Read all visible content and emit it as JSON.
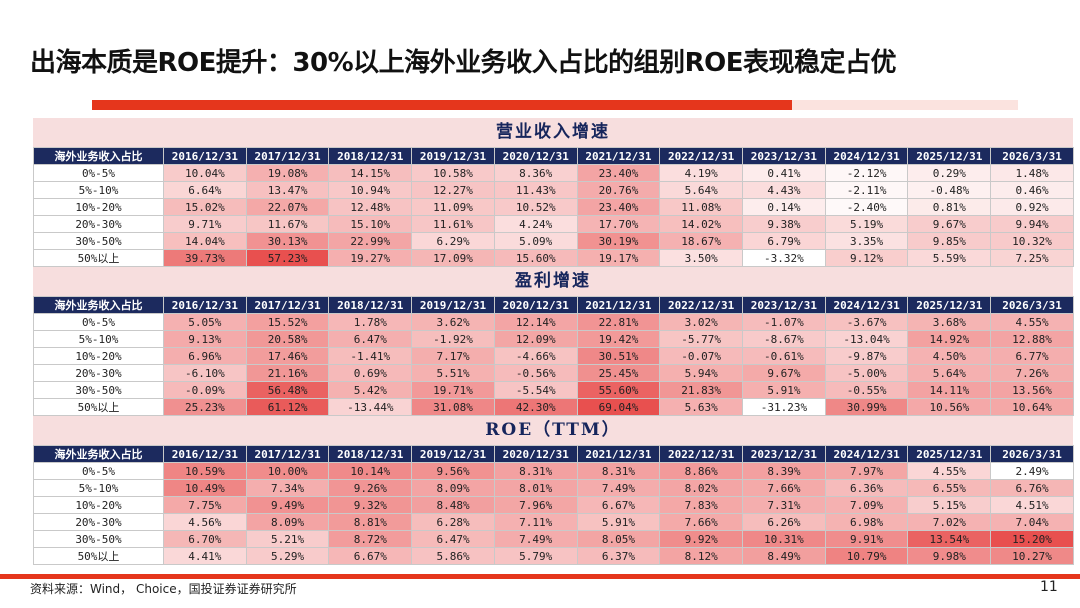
{
  "title": "出海本质是ROE提升：30%以上海外业务收入占比的组别ROE表现稳定占优",
  "row_header_label": "海外业务收入占比",
  "columns": [
    "2016/12/31",
    "2017/12/31",
    "2018/12/31",
    "2019/12/31",
    "2020/12/31",
    "2021/12/31",
    "2022/12/31",
    "2023/12/31",
    "2024/12/31",
    "2025/12/31",
    "2026/3/31"
  ],
  "row_labels": [
    "0%-5%",
    "5%-10%",
    "10%-20%",
    "20%-30%",
    "30%-50%",
    "50%以上"
  ],
  "tables": [
    {
      "title": "营业收入增速",
      "cells": [
        [
          "10.04%",
          "19.08%",
          "14.15%",
          "10.58%",
          "8.36%",
          "23.40%",
          "4.19%",
          "0.41%",
          "-2.12%",
          "0.29%",
          "1.48%"
        ],
        [
          "6.64%",
          "13.47%",
          "10.94%",
          "12.27%",
          "11.43%",
          "20.76%",
          "5.64%",
          "4.43%",
          "-2.11%",
          "-0.48%",
          "0.46%"
        ],
        [
          "15.02%",
          "22.07%",
          "12.48%",
          "11.09%",
          "10.52%",
          "23.40%",
          "11.08%",
          "0.14%",
          "-2.40%",
          "0.81%",
          "0.92%"
        ],
        [
          "9.71%",
          "11.67%",
          "15.10%",
          "11.61%",
          "4.24%",
          "17.70%",
          "14.02%",
          "9.38%",
          "5.19%",
          "9.67%",
          "9.94%"
        ],
        [
          "14.04%",
          "30.13%",
          "22.99%",
          "6.29%",
          "5.09%",
          "30.19%",
          "18.67%",
          "6.79%",
          "3.35%",
          "9.85%",
          "10.32%"
        ],
        [
          "39.73%",
          "57.23%",
          "19.27%",
          "17.09%",
          "15.60%",
          "19.17%",
          "3.50%",
          "-3.32%",
          "9.12%",
          "5.59%",
          "7.25%"
        ]
      ],
      "values": [
        [
          10.04,
          19.08,
          14.15,
          10.58,
          8.36,
          23.4,
          4.19,
          0.41,
          -2.12,
          0.29,
          1.48
        ],
        [
          6.64,
          13.47,
          10.94,
          12.27,
          11.43,
          20.76,
          5.64,
          4.43,
          -2.11,
          -0.48,
          0.46
        ],
        [
          15.02,
          22.07,
          12.48,
          11.09,
          10.52,
          23.4,
          11.08,
          0.14,
          -2.4,
          0.81,
          0.92
        ],
        [
          9.71,
          11.67,
          15.1,
          11.61,
          4.24,
          17.7,
          14.02,
          9.38,
          5.19,
          9.67,
          9.94
        ],
        [
          14.04,
          30.13,
          22.99,
          6.29,
          5.09,
          30.19,
          18.67,
          6.79,
          3.35,
          9.85,
          10.32
        ],
        [
          39.73,
          57.23,
          19.27,
          17.09,
          15.6,
          19.17,
          3.5,
          -3.32,
          9.12,
          5.59,
          7.25
        ]
      ]
    },
    {
      "title": "盈利增速",
      "cells": [
        [
          "5.05%",
          "15.52%",
          "1.78%",
          "3.62%",
          "12.14%",
          "22.81%",
          "3.02%",
          "-1.07%",
          "-3.67%",
          "3.68%",
          "4.55%"
        ],
        [
          "9.13%",
          "20.58%",
          "6.47%",
          "-1.92%",
          "12.09%",
          "19.42%",
          "-5.77%",
          "-8.67%",
          "-13.04%",
          "14.92%",
          "12.88%"
        ],
        [
          "6.96%",
          "17.46%",
          "-1.41%",
          "7.17%",
          "-4.66%",
          "30.51%",
          "-0.07%",
          "-0.61%",
          "-9.87%",
          "4.50%",
          "6.77%"
        ],
        [
          "-6.10%",
          "21.16%",
          "0.69%",
          "5.51%",
          "-0.56%",
          "25.45%",
          "5.94%",
          "9.67%",
          "-5.00%",
          "5.64%",
          "7.26%"
        ],
        [
          "-0.09%",
          "56.48%",
          "5.42%",
          "19.71%",
          "-5.54%",
          "55.60%",
          "21.83%",
          "5.91%",
          "-0.55%",
          "14.11%",
          "13.56%"
        ],
        [
          "25.23%",
          "61.12%",
          "-13.44%",
          "31.08%",
          "42.30%",
          "69.04%",
          "5.63%",
          "-31.23%",
          "30.99%",
          "10.56%",
          "10.64%"
        ]
      ],
      "values": [
        [
          5.05,
          15.52,
          1.78,
          3.62,
          12.14,
          22.81,
          3.02,
          -1.07,
          -3.67,
          3.68,
          4.55
        ],
        [
          9.13,
          20.58,
          6.47,
          -1.92,
          12.09,
          19.42,
          -5.77,
          -8.67,
          -13.04,
          14.92,
          12.88
        ],
        [
          6.96,
          17.46,
          -1.41,
          7.17,
          -4.66,
          30.51,
          -0.07,
          -0.61,
          -9.87,
          4.5,
          6.77
        ],
        [
          -6.1,
          21.16,
          0.69,
          5.51,
          -0.56,
          25.45,
          5.94,
          9.67,
          -5.0,
          5.64,
          7.26
        ],
        [
          -0.09,
          56.48,
          5.42,
          19.71,
          -5.54,
          55.6,
          21.83,
          5.91,
          -0.55,
          14.11,
          13.56
        ],
        [
          25.23,
          61.12,
          -13.44,
          31.08,
          42.3,
          69.04,
          5.63,
          -31.23,
          30.99,
          10.56,
          10.64
        ]
      ]
    },
    {
      "title": "ROE（TTM）",
      "cells": [
        [
          "10.59%",
          "10.00%",
          "10.14%",
          "9.56%",
          "8.31%",
          "8.31%",
          "8.86%",
          "8.39%",
          "7.97%",
          "4.55%",
          "2.49%"
        ],
        [
          "10.49%",
          "7.34%",
          "9.26%",
          "8.09%",
          "8.01%",
          "7.49%",
          "8.02%",
          "7.66%",
          "6.36%",
          "6.55%",
          "6.76%"
        ],
        [
          "7.75%",
          "9.49%",
          "9.32%",
          "8.48%",
          "7.96%",
          "6.67%",
          "7.83%",
          "7.31%",
          "7.09%",
          "5.15%",
          "4.51%"
        ],
        [
          "4.56%",
          "8.09%",
          "8.81%",
          "6.28%",
          "7.11%",
          "5.91%",
          "7.66%",
          "6.26%",
          "6.98%",
          "7.02%",
          "7.04%"
        ],
        [
          "6.70%",
          "5.21%",
          "8.72%",
          "6.47%",
          "7.49%",
          "8.05%",
          "9.92%",
          "10.31%",
          "9.91%",
          "13.54%",
          "15.20%"
        ],
        [
          "4.41%",
          "5.29%",
          "6.67%",
          "5.86%",
          "5.79%",
          "6.37%",
          "8.12%",
          "8.49%",
          "10.79%",
          "9.98%",
          "10.27%"
        ]
      ],
      "values": [
        [
          10.59,
          10.0,
          10.14,
          9.56,
          8.31,
          8.31,
          8.86,
          8.39,
          7.97,
          4.55,
          2.49
        ],
        [
          10.49,
          7.34,
          9.26,
          8.09,
          8.01,
          7.49,
          8.02,
          7.66,
          6.36,
          6.55,
          6.76
        ],
        [
          7.75,
          9.49,
          9.32,
          8.48,
          7.96,
          6.67,
          7.83,
          7.31,
          7.09,
          5.15,
          4.51
        ],
        [
          4.56,
          8.09,
          8.81,
          6.28,
          7.11,
          5.91,
          7.66,
          6.26,
          6.98,
          7.02,
          7.04
        ],
        [
          6.7,
          5.21,
          8.72,
          6.47,
          7.49,
          8.05,
          9.92,
          10.31,
          9.91,
          13.54,
          15.2
        ],
        [
          4.41,
          5.29,
          6.67,
          5.86,
          5.79,
          6.37,
          8.12,
          8.49,
          10.79,
          9.98,
          10.27
        ]
      ]
    }
  ],
  "colors": {
    "accent_red": "#e5361c",
    "header_navy": "#1c2a5e",
    "section_bg": "#f7dede",
    "heat_high": "#e8504f",
    "heat_low": "#ffffff"
  },
  "footer": {
    "source": "资料来源：Wind， Choice，国投证券证券研究所",
    "page_number": "11"
  }
}
